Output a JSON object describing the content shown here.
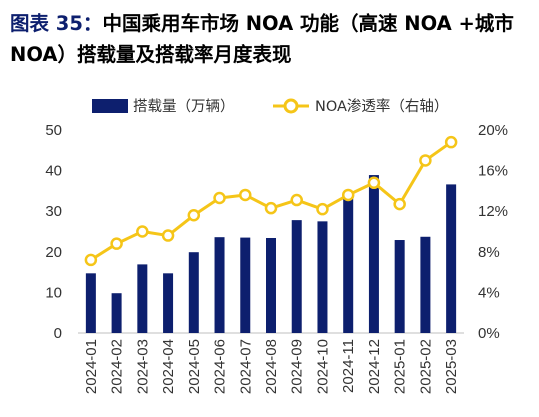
{
  "title": {
    "label": "图表 35：",
    "text": "中国乘用车市场 NOA 功能（高速 NOA +城市 NOA）搭载量及搭载率月度表现"
  },
  "colors": {
    "bar": "#0d1f6e",
    "line": "#f5c518",
    "title_label": "#0d1f6e"
  },
  "chart_data": {
    "type": "bar",
    "categories": [
      "2024-01",
      "2024-02",
      "2024-03",
      "2024-04",
      "2024-05",
      "2024-06",
      "2024-07",
      "2024-08",
      "2024-09",
      "2024-10",
      "2024-11",
      "2024-12",
      "2025-01",
      "2025-02",
      "2025-03"
    ],
    "series": [
      {
        "name": "搭载量（万辆）",
        "type": "bar",
        "axis": "left",
        "values": [
          14.7,
          9.8,
          16.9,
          14.7,
          19.9,
          23.6,
          23.5,
          23.4,
          27.8,
          27.5,
          33.4,
          38.9,
          22.9,
          23.7,
          36.6
        ]
      },
      {
        "name": "NOA渗透率（右轴）",
        "type": "line",
        "axis": "right",
        "values": [
          7.2,
          8.8,
          10.0,
          9.6,
          11.6,
          13.3,
          13.6,
          12.3,
          13.1,
          12.2,
          13.6,
          14.8,
          12.7,
          17.0,
          18.8
        ]
      }
    ],
    "y_left": {
      "min": 0,
      "max": 50,
      "ticks": [
        "0",
        "10",
        "20",
        "30",
        "40",
        "50"
      ]
    },
    "y_right": {
      "min": 0,
      "max": 20,
      "ticks": [
        "0%",
        "4%",
        "8%",
        "12%",
        "16%",
        "20%"
      ]
    },
    "legend": {
      "placement": "top"
    },
    "grid": false
  }
}
